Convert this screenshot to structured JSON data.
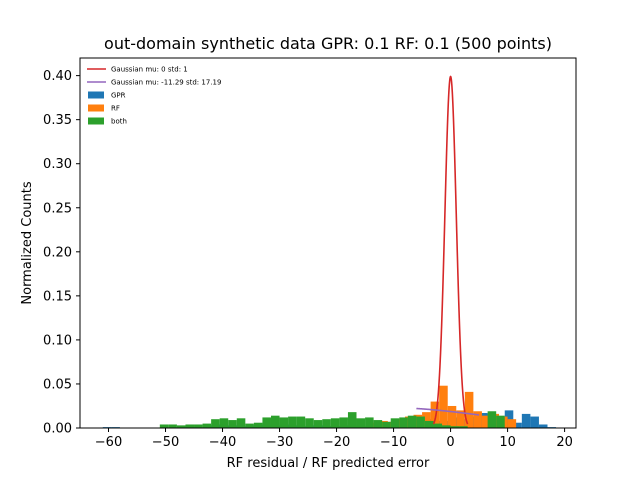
{
  "chart_data": {
    "type": "histogram",
    "title": "out-domain synthetic data GPR: 0.1 RF: 0.1 (500 points)",
    "xlabel": "RF residual / RF predicted error",
    "ylabel": "Normalized Counts",
    "xlim": [
      -65,
      22
    ],
    "ylim": [
      0,
      0.42
    ],
    "xticks": [
      -60,
      -50,
      -40,
      -30,
      -20,
      -10,
      0,
      10,
      20
    ],
    "yticks": [
      0.0,
      0.05,
      0.1,
      0.15,
      0.2,
      0.25,
      0.3,
      0.35,
      0.4
    ],
    "xtick_labels": [
      "−60",
      "−50",
      "−40",
      "−30",
      "−20",
      "−10",
      "0",
      "10",
      "20"
    ],
    "ytick_labels": [
      "0.00",
      "0.05",
      "0.10",
      "0.15",
      "0.20",
      "0.25",
      "0.30",
      "0.35",
      "0.40"
    ],
    "legend_position": "upper-left",
    "legend": [
      {
        "label": "Gaussian mu: 0 std: 1",
        "kind": "line",
        "color": "#d62728"
      },
      {
        "label": "Gaussian mu: -11.29 std: 17.19",
        "kind": "line",
        "color": "#9467bd"
      },
      {
        "label": "GPR",
        "kind": "patch",
        "color": "#1f77b4"
      },
      {
        "label": "RF",
        "kind": "patch",
        "color": "#ff7f0e"
      },
      {
        "label": "both",
        "kind": "patch",
        "color": "#2ca02c"
      }
    ],
    "series": [
      {
        "name": "GPR",
        "type": "histogram",
        "color": "#1f77b4",
        "bins": [
          [
            -61,
            -59.5,
            0.001
          ],
          [
            -59.5,
            -58,
            0.001
          ],
          [
            -48,
            -46.5,
            0.002
          ],
          [
            -46.5,
            -45,
            0.002
          ],
          [
            -43,
            -41.5,
            0.003
          ],
          [
            -41.5,
            -40,
            0.004
          ],
          [
            -40,
            -38.5,
            0.003
          ],
          [
            -38.5,
            -37,
            0.003
          ],
          [
            -37,
            -35.5,
            0.002
          ],
          [
            -35.5,
            -34,
            0.003
          ],
          [
            -34,
            -32.5,
            0.004
          ],
          [
            -32.5,
            -31,
            0.004
          ],
          [
            -31,
            -29.5,
            0.003
          ],
          [
            -29.5,
            -28,
            0.004
          ],
          [
            -28,
            -26.5,
            0.003
          ],
          [
            -26.5,
            -25,
            0.002
          ],
          [
            -25,
            -23.5,
            0.003
          ],
          [
            -23.5,
            -22,
            0.003
          ],
          [
            -22,
            -20.5,
            0.002
          ],
          [
            -20.5,
            -19,
            0.002
          ],
          [
            -19,
            -17.5,
            0.003
          ],
          [
            -17.5,
            -16,
            0.002
          ],
          [
            -16,
            -14.5,
            0.002
          ],
          [
            -14.5,
            -13,
            0.003
          ],
          [
            -13,
            -11.5,
            0.002
          ],
          [
            -11.5,
            -10,
            0.002
          ],
          [
            -10,
            -8.5,
            0.003
          ],
          [
            -8.5,
            -7,
            0.002
          ],
          [
            -7,
            -5.5,
            0.003
          ],
          [
            -5.5,
            -4,
            0.004
          ],
          [
            -4,
            -2.5,
            0.01
          ],
          [
            -2.5,
            -1,
            0.008
          ],
          [
            -1,
            0.5,
            0.008
          ],
          [
            0.5,
            2,
            0.012
          ],
          [
            2,
            3.5,
            0.01
          ],
          [
            3.5,
            5,
            0.013
          ],
          [
            5,
            6.5,
            0.017
          ],
          [
            6.5,
            8,
            0.016
          ],
          [
            8,
            9.5,
            0.012
          ],
          [
            9.5,
            11,
            0.02
          ],
          [
            11,
            12.5,
            0.006
          ],
          [
            12.5,
            14,
            0.016
          ],
          [
            14,
            15.5,
            0.013
          ],
          [
            15.5,
            17,
            0.004
          ],
          [
            17,
            18.5,
            0.001
          ]
        ]
      },
      {
        "name": "RF",
        "type": "histogram",
        "color": "#ff7f0e",
        "bins": [
          [
            -14,
            -12.5,
            0.006
          ],
          [
            -12.5,
            -11,
            0.008
          ],
          [
            -11,
            -9.5,
            0.007
          ],
          [
            -9.5,
            -8,
            0.01
          ],
          [
            -8,
            -6.5,
            0.013
          ],
          [
            -6.5,
            -5,
            0.015
          ],
          [
            -5,
            -3.5,
            0.018
          ],
          [
            -3.5,
            -2,
            0.03
          ],
          [
            -2,
            -0.5,
            0.048
          ],
          [
            -0.5,
            1,
            0.025
          ],
          [
            1,
            2.5,
            0.02
          ],
          [
            2.5,
            4,
            0.041
          ],
          [
            4,
            5.5,
            0.019
          ],
          [
            5.5,
            7,
            0.014
          ],
          [
            7,
            8.5,
            0.016
          ],
          [
            8.5,
            10,
            0.013
          ],
          [
            10,
            11.5,
            0.01
          ]
        ]
      },
      {
        "name": "both",
        "type": "histogram",
        "color": "#2ca02c",
        "bins": [
          [
            -51,
            -49.5,
            0.004
          ],
          [
            -49.5,
            -48,
            0.004
          ],
          [
            -48,
            -46.5,
            0.003
          ],
          [
            -46.5,
            -45,
            0.004
          ],
          [
            -45,
            -43.5,
            0.004
          ],
          [
            -43.5,
            -42,
            0.005
          ],
          [
            -42,
            -40.5,
            0.01
          ],
          [
            -40.5,
            -39,
            0.011
          ],
          [
            -39,
            -37.5,
            0.009
          ],
          [
            -37.5,
            -36,
            0.011
          ],
          [
            -36,
            -34.5,
            0.005
          ],
          [
            -34.5,
            -33,
            0.006
          ],
          [
            -33,
            -31.5,
            0.012
          ],
          [
            -31.5,
            -30,
            0.014
          ],
          [
            -30,
            -28.5,
            0.012
          ],
          [
            -28.5,
            -27,
            0.013
          ],
          [
            -27,
            -25.5,
            0.013
          ],
          [
            -25.5,
            -24,
            0.011
          ],
          [
            -24,
            -22.5,
            0.009
          ],
          [
            -22.5,
            -21,
            0.01
          ],
          [
            -21,
            -19.5,
            0.011
          ],
          [
            -19.5,
            -18,
            0.012
          ],
          [
            -18,
            -16.5,
            0.018
          ],
          [
            -16.5,
            -15,
            0.011
          ],
          [
            -15,
            -13.5,
            0.012
          ],
          [
            -13.5,
            -12,
            0.009
          ],
          [
            -12,
            -10.5,
            0.007
          ],
          [
            -10.5,
            -9,
            0.011
          ],
          [
            -9,
            -7.5,
            0.012
          ],
          [
            -7.5,
            -6,
            0.014
          ],
          [
            -6,
            -4.5,
            0.013
          ],
          [
            -4.5,
            -3,
            0.008
          ],
          [
            -3,
            -1.5,
            0.005
          ],
          [
            -1.5,
            0,
            0.003
          ],
          [
            0,
            1.5,
            0.002
          ],
          [
            1.5,
            3,
            0.002
          ],
          [
            6.5,
            8,
            0.019
          ],
          [
            8,
            9.5,
            0.014
          ]
        ]
      },
      {
        "name": "Gaussian mu: 0 std: 1",
        "type": "line",
        "color": "#d62728",
        "mu": 0,
        "std": 1,
        "x_range": [
          -3,
          3
        ]
      },
      {
        "name": "Gaussian mu: -11.29 std: 17.19",
        "type": "line",
        "color": "#9467bd",
        "mu": -11.29,
        "std": 17.19,
        "x_range": [
          -6,
          5
        ]
      }
    ]
  }
}
